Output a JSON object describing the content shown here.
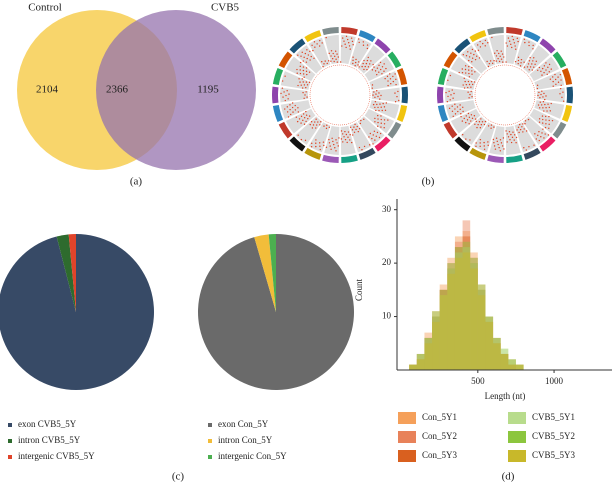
{
  "chart_data": [
    {
      "type": "venn",
      "caption": "(a)",
      "sets": [
        {
          "name": "Control",
          "color": "#f8d56b"
        },
        {
          "name": "CVB5",
          "color": "#9673ad"
        }
      ],
      "values": [
        2104,
        2366,
        1195
      ]
    },
    {
      "type": "circos",
      "caption": "(b)"
    },
    {
      "type": "pie",
      "caption": "(c)",
      "categories": [
        "exon CVB5_5Y",
        "intron CVB5_5Y",
        "intergenic CVB5_5Y"
      ],
      "values": [
        96,
        2.5,
        1.5
      ],
      "colors": [
        "#374a66",
        "#2e6b2e",
        "#e0442a"
      ]
    },
    {
      "type": "pie",
      "categories": [
        "exon Con_5Y",
        "intron Con_5Y",
        "intergenic Con_5Y"
      ],
      "values": [
        95.5,
        3,
        1.5
      ],
      "colors": [
        "#6a6a6a",
        "#f2bd3a",
        "#4caf50"
      ]
    },
    {
      "type": "histogram",
      "caption": "(d)",
      "x_label": "Length (nt)",
      "y_label": "Count",
      "xlim": [
        -30,
        1380
      ],
      "ylim": [
        0,
        32
      ],
      "xticks": [
        500,
        1000
      ],
      "yticks": [
        10,
        20,
        30
      ],
      "bins": [
        50,
        100,
        150,
        200,
        250,
        300,
        350,
        400,
        450,
        500,
        550,
        600,
        650,
        700,
        750,
        800
      ],
      "series": [
        {
          "name": "Con_5Y1",
          "color": "#f5a05a",
          "values": [
            1,
            3,
            7,
            11,
            16,
            21,
            25,
            26,
            22,
            16,
            10,
            6,
            3,
            2,
            1
          ]
        },
        {
          "name": "Con_5Y2",
          "color": "#e8825a",
          "values": [
            1,
            3,
            6,
            10,
            15,
            20,
            24,
            28,
            21,
            15,
            10,
            6,
            3,
            1,
            1
          ]
        },
        {
          "name": "Con_5Y3",
          "color": "#d9601f",
          "values": [
            1,
            2,
            6,
            10,
            15,
            19,
            23,
            25,
            20,
            15,
            9,
            5,
            3,
            1,
            0
          ]
        },
        {
          "name": "CVB5_5Y1",
          "color": "#b8dc8c",
          "values": [
            1,
            3,
            6,
            10,
            14,
            19,
            22,
            23,
            20,
            15,
            10,
            6,
            3,
            2,
            1
          ]
        },
        {
          "name": "CVB5_5Y2",
          "color": "#8cc63e",
          "values": [
            1,
            3,
            6,
            11,
            15,
            20,
            23,
            24,
            21,
            16,
            10,
            6,
            4,
            2,
            1
          ]
        },
        {
          "name": "CVB5_5Y3",
          "color": "#c8b82a",
          "values": [
            1,
            2,
            5,
            9,
            14,
            18,
            21,
            22,
            19,
            14,
            9,
            5,
            3,
            1,
            1
          ]
        }
      ]
    }
  ]
}
